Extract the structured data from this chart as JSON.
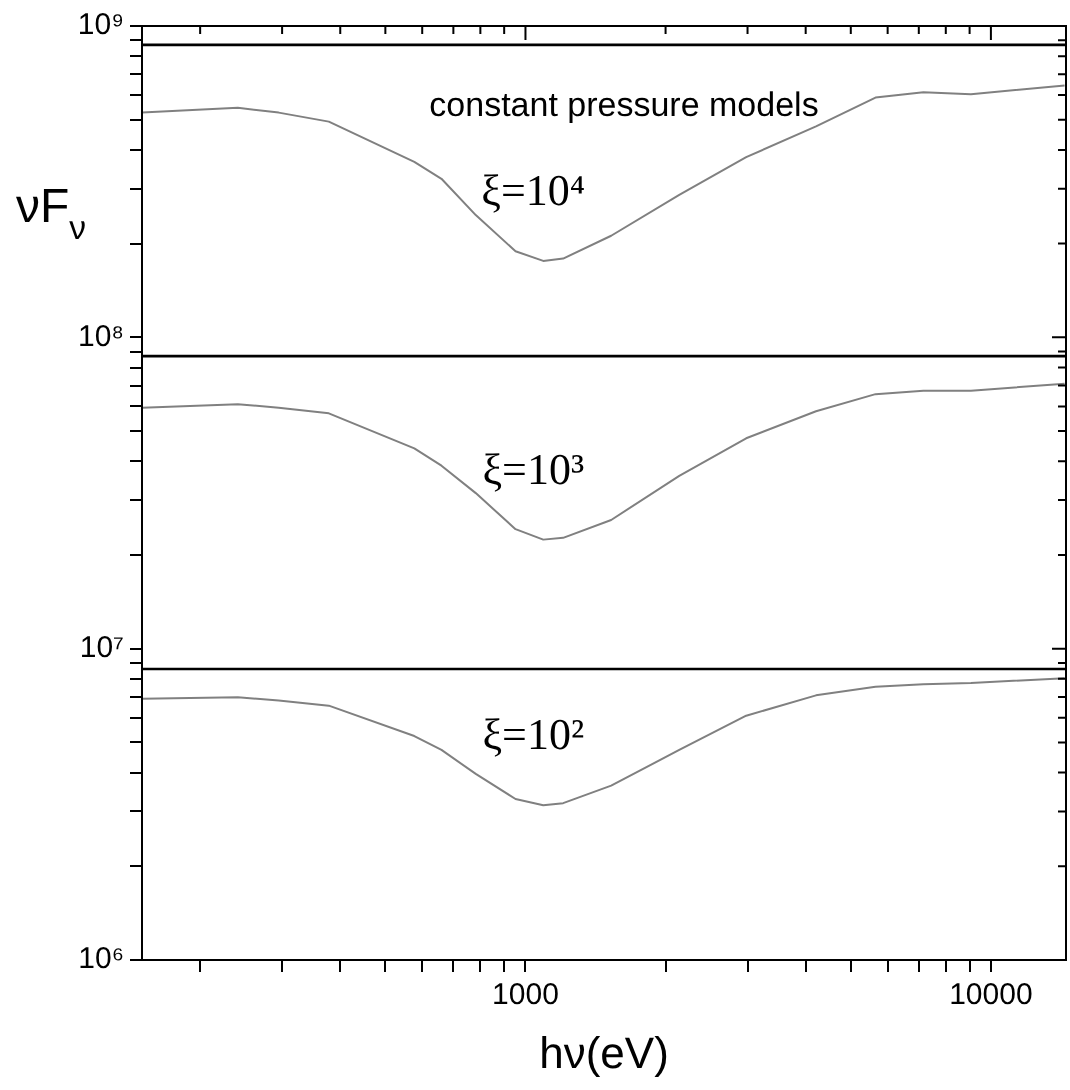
{
  "chart_data": {
    "type": "line",
    "xlabel": "hν(eV)",
    "ylabel": "νF$_{ν}$",
    "log": "xy",
    "grid": false,
    "legend": false,
    "marker": "none",
    "line_style": "solid",
    "xlim": [
      150,
      14500
    ],
    "ylim": [
      1000000,
      1000000000
    ],
    "xticks": [
      {
        "value": 200,
        "label": null
      },
      {
        "value": 300,
        "label": null
      },
      {
        "value": 400,
        "label": null
      },
      {
        "value": 500,
        "label": null
      },
      {
        "value": 600,
        "label": null
      },
      {
        "value": 700,
        "label": null
      },
      {
        "value": 800,
        "label": null
      },
      {
        "value": 900,
        "label": null
      },
      1000,
      {
        "value": 2000,
        "label": null
      },
      {
        "value": 3000,
        "label": null
      },
      {
        "value": 4000,
        "label": null
      },
      {
        "value": 5000,
        "label": null
      },
      {
        "value": 6000,
        "label": null
      },
      {
        "value": 7000,
        "label": null
      },
      {
        "value": 8000,
        "label": null
      },
      {
        "value": 9000,
        "label": null
      },
      10000
    ],
    "yticks": [
      {
        "value": 1000000,
        "label": "10⁶"
      },
      {
        "value": 2000000,
        "label": null
      },
      {
        "value": 3000000,
        "label": null
      },
      {
        "value": 4000000,
        "label": null
      },
      {
        "value": 5000000,
        "label": null
      },
      {
        "value": 6000000,
        "label": null
      },
      {
        "value": 7000000,
        "label": null
      },
      {
        "value": 8000000,
        "label": null
      },
      {
        "value": 9000000,
        "label": null
      },
      {
        "value": 10000000,
        "label": "10⁷"
      },
      {
        "value": 20000000,
        "label": null
      },
      {
        "value": 30000000,
        "label": null
      },
      {
        "value": 40000000,
        "label": null
      },
      {
        "value": 50000000,
        "label": null
      },
      {
        "value": 60000000,
        "label": null
      },
      {
        "value": 70000000,
        "label": null
      },
      {
        "value": 80000000,
        "label": null
      },
      {
        "value": 90000000,
        "label": null
      },
      {
        "value": 100000000,
        "label": "10⁸"
      },
      {
        "value": 200000000,
        "label": null
      },
      {
        "value": 300000000,
        "label": null
      },
      {
        "value": 400000000,
        "label": null
      },
      {
        "value": 500000000,
        "label": null
      },
      {
        "value": 600000000,
        "label": null
      },
      {
        "value": 700000000,
        "label": null
      },
      {
        "value": 800000000,
        "label": null
      },
      {
        "value": 900000000,
        "label": null
      },
      {
        "value": 1000000000,
        "label": "10⁹"
      }
    ],
    "x": [
      150,
      241,
      295,
      378,
      577,
      660,
      782,
      952,
      1092,
      1205,
      1528,
      2140,
      2980,
      4210,
      5650,
      7160,
      9060,
      14400
    ],
    "series": [
      {
        "name": "ξ=10⁴",
        "color": "#808080",
        "values": [
          527000000,
          546000000,
          527000000,
          493000000,
          366000000,
          323000000,
          247000000,
          189000000,
          176000000,
          179000000,
          212000000,
          287000000,
          379000000,
          476000000,
          589000000,
          613000000,
          604000000,
          644000000
        ]
      },
      {
        "name": "ξ=10³",
        "color": "#808080",
        "values": [
          59400000,
          61000000,
          59400000,
          57000000,
          44000000,
          38700000,
          31600000,
          24200000,
          22400000,
          22700000,
          25900000,
          35900000,
          47400000,
          57900000,
          65700000,
          67400000,
          67400000,
          71000000
        ]
      },
      {
        "name": "ξ=10²",
        "color": "#808080",
        "values": [
          6900000,
          6980000,
          6810000,
          6560000,
          5240000,
          4730000,
          3960000,
          3290000,
          3140000,
          3190000,
          3630000,
          4730000,
          6090000,
          7080000,
          7540000,
          7690000,
          7760000,
          8040000
        ]
      }
    ],
    "ref_lines": [
      {
        "axis": "y",
        "value": 870000000,
        "color": "#000000"
      },
      {
        "axis": "y",
        "value": 87000000,
        "color": "#000000"
      },
      {
        "axis": "y",
        "value": 8600000,
        "color": "#000000"
      }
    ],
    "annotations": [
      "constant pressure models"
    ]
  }
}
